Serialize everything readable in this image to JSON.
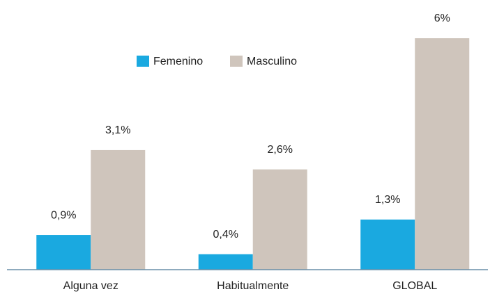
{
  "chart_data": {
    "type": "bar",
    "categories": [
      "Alguna vez",
      "Habitualmente",
      "GLOBAL"
    ],
    "series": [
      {
        "name": "Femenino",
        "color": "#1aa9e0",
        "values": [
          0.9,
          0.4,
          1.3
        ],
        "value_labels": [
          "0,9%",
          "0,4%",
          "1,3%"
        ]
      },
      {
        "name": "Masculino",
        "color": "#cfc5bc",
        "values": [
          3.1,
          2.6,
          6
        ],
        "value_labels": [
          "3,1%",
          "2,6%",
          "6%"
        ]
      }
    ],
    "ylim": [
      0,
      6
    ],
    "legend": "top"
  }
}
